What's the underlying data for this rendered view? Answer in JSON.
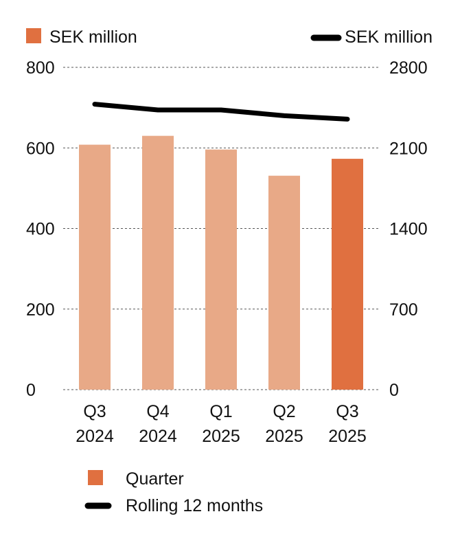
{
  "chart_data": {
    "type": "bar",
    "categories": [
      [
        "Q3",
        "2024"
      ],
      [
        "Q4",
        "2024"
      ],
      [
        "Q1",
        "2025"
      ],
      [
        "Q2",
        "2025"
      ],
      [
        "Q3",
        "2025"
      ]
    ],
    "left_axis": {
      "unit_label": "SEK million",
      "ylim": [
        0,
        800
      ],
      "ticks": [
        "0",
        "200",
        "400",
        "600",
        "800"
      ]
    },
    "right_axis": {
      "unit_label": "SEK million",
      "ylim": [
        0,
        2800
      ],
      "ticks": [
        "0",
        "700",
        "1400",
        "2100",
        "2800"
      ]
    },
    "series": [
      {
        "name": "Quarter",
        "kind": "bar",
        "axis": "left",
        "values": [
          608,
          630,
          596,
          531,
          573
        ],
        "colors": [
          "#E8A987",
          "#E8A987",
          "#E8A987",
          "#E8A987",
          "#E07040"
        ]
      },
      {
        "name": "Rolling 12 months",
        "kind": "line",
        "axis": "right",
        "values": [
          2480,
          2430,
          2430,
          2380,
          2350
        ],
        "color": "#000000"
      }
    ],
    "grid": true,
    "legend_position": "bottom-left",
    "accent_color": "#E07040"
  }
}
